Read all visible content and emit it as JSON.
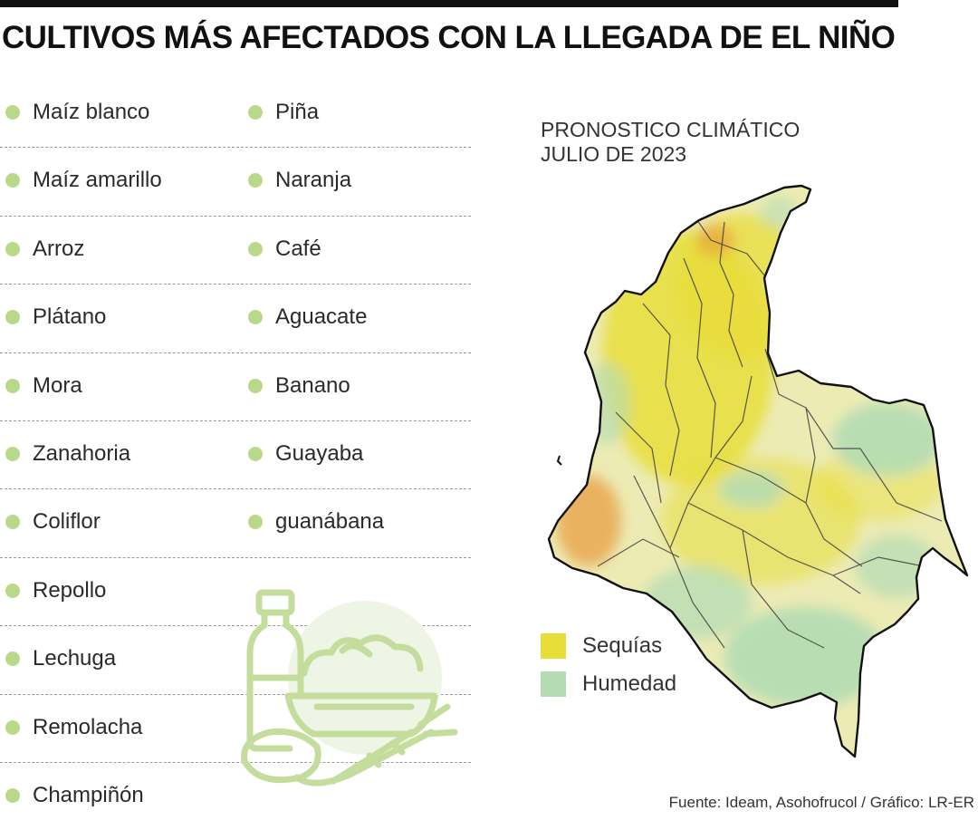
{
  "headline": "CULTIVOS MÁS AFECTADOS CON LA LLEGADA DE EL NIÑO",
  "crops_column1": [
    "Maíz blanco",
    "Maíz amarillo",
    "Arroz",
    "Plátano",
    "Mora",
    "Zanahoria",
    "Coliflor",
    "Repollo",
    "Lechuga",
    "Remolacha",
    "Champiñón"
  ],
  "crops_column2": [
    "Piña",
    "Naranja",
    "Café",
    "Aguacate",
    "Banano",
    "Guayaba",
    "guanábana"
  ],
  "map": {
    "title_line1": "PRONOSTICO CLIMÁTICO",
    "title_line2": "JULIO DE 2023",
    "legend": [
      {
        "label": "Sequías",
        "color": "#e8de3a"
      },
      {
        "label": "Humedad",
        "color": "#b4dcb4"
      }
    ]
  },
  "source": "Fuente: Ideam, Asohofrucol / Gráfico: LR-ER",
  "colors": {
    "bullet": "#b9d98a",
    "illustration_line": "#c5dd9c",
    "illustration_bg": "#eef5e4",
    "drought": "#e8de3a",
    "humidity": "#b4dcb4",
    "hotspot": "#e89a3c"
  },
  "icons": {
    "bullet": "circle-bullet-icon",
    "illustration": "vegetables-basket-icon"
  }
}
